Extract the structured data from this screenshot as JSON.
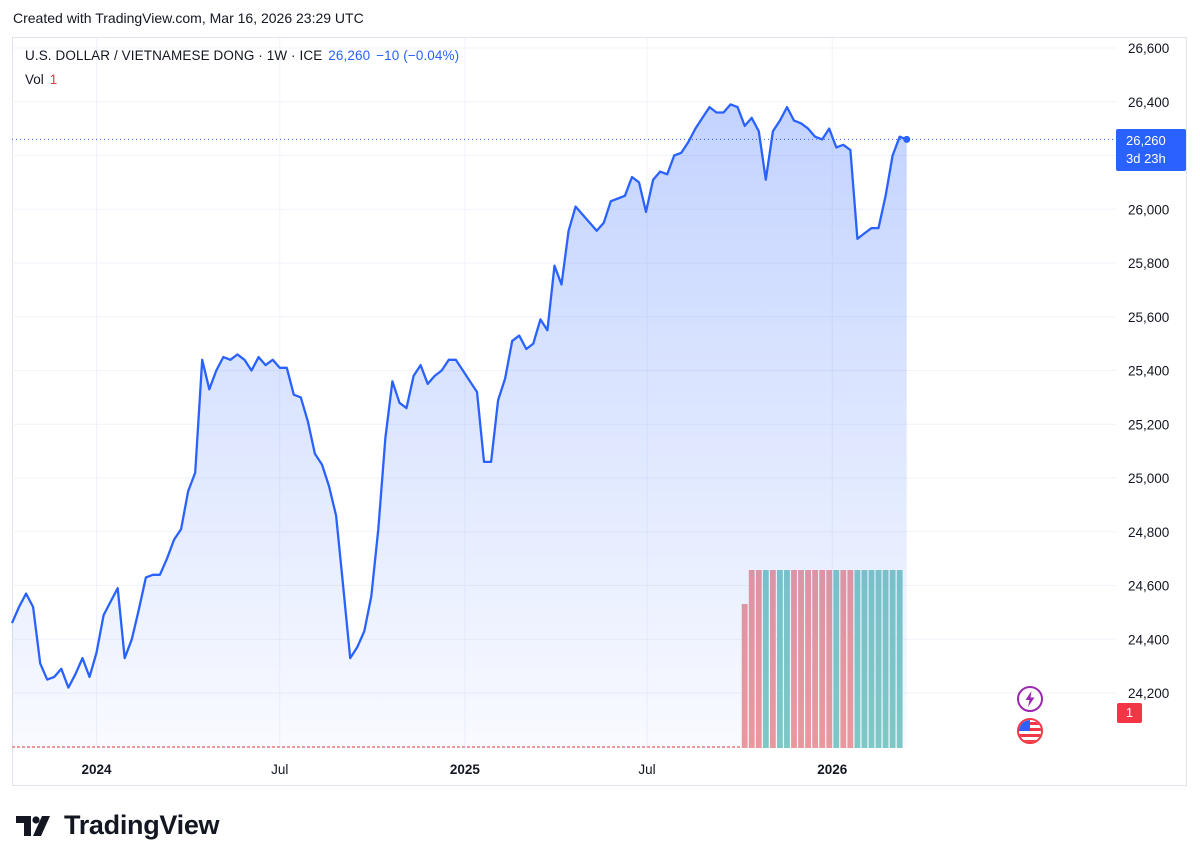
{
  "header_note": "Created with TradingView.com, Mar 16, 2026 23:29 UTC",
  "legend": {
    "symbol": "U.S. DOLLAR / VIETNAMESE DONG · 1W · ICE",
    "price": "26,260",
    "change": "−10 (−0.04%)",
    "vol_label": "Vol",
    "vol_value": "1"
  },
  "price_tag": {
    "price": "26,260",
    "countdown": "3d 23h"
  },
  "vol_tag": "1",
  "branding": "TradingView",
  "colors": {
    "line": "#2962ff",
    "up_volume": "#80cbc4",
    "down_volume": "#ef9a9a",
    "axis_text": "#131722"
  },
  "chart_data": {
    "type": "area",
    "title": "U.S. DOLLAR / VIETNAMESE DONG",
    "xlabel": "",
    "ylabel": "",
    "ylim": [
      23900,
      26700
    ],
    "y_ticks": [
      24200,
      24400,
      24600,
      24800,
      25000,
      25200,
      25400,
      25600,
      25800,
      26000,
      26200,
      26400,
      26600
    ],
    "y_tick_labels": [
      "24,200",
      "24,400",
      "24,600",
      "24,800",
      "25,000",
      "25,200",
      "25,400",
      "25,600",
      "25,800",
      "26,000",
      "26,200",
      "26,400",
      "26,600"
    ],
    "x_ticks": [
      {
        "date": "2024-01-01",
        "label": "2024",
        "bold": true
      },
      {
        "date": "2024-07-01",
        "label": "Jul",
        "bold": false
      },
      {
        "date": "2025-01-01",
        "label": "2025",
        "bold": true
      },
      {
        "date": "2025-07-01",
        "label": "Jul",
        "bold": false
      },
      {
        "date": "2026-01-01",
        "label": "2026",
        "bold": true
      }
    ],
    "grid": true,
    "last_price": 26260,
    "series": [
      {
        "name": "USD/VND",
        "points": [
          [
            "2023-10-09",
            24460
          ],
          [
            "2023-10-16",
            24520
          ],
          [
            "2023-10-23",
            24570
          ],
          [
            "2023-10-30",
            24520
          ],
          [
            "2023-11-06",
            24310
          ],
          [
            "2023-11-13",
            24250
          ],
          [
            "2023-11-20",
            24260
          ],
          [
            "2023-11-27",
            24290
          ],
          [
            "2023-12-04",
            24220
          ],
          [
            "2023-12-11",
            24270
          ],
          [
            "2023-12-18",
            24330
          ],
          [
            "2023-12-25",
            24260
          ],
          [
            "2024-01-01",
            24350
          ],
          [
            "2024-01-08",
            24490
          ],
          [
            "2024-01-15",
            24540
          ],
          [
            "2024-01-22",
            24590
          ],
          [
            "2024-01-29",
            24330
          ],
          [
            "2024-02-05",
            24400
          ],
          [
            "2024-02-12",
            24510
          ],
          [
            "2024-02-19",
            24630
          ],
          [
            "2024-02-26",
            24640
          ],
          [
            "2024-03-04",
            24640
          ],
          [
            "2024-03-11",
            24700
          ],
          [
            "2024-03-18",
            24770
          ],
          [
            "2024-03-25",
            24810
          ],
          [
            "2024-04-01",
            24950
          ],
          [
            "2024-04-08",
            25020
          ],
          [
            "2024-04-15",
            25440
          ],
          [
            "2024-04-22",
            25330
          ],
          [
            "2024-04-29",
            25400
          ],
          [
            "2024-05-06",
            25450
          ],
          [
            "2024-05-13",
            25440
          ],
          [
            "2024-05-20",
            25460
          ],
          [
            "2024-05-27",
            25440
          ],
          [
            "2024-06-03",
            25400
          ],
          [
            "2024-06-10",
            25450
          ],
          [
            "2024-06-17",
            25420
          ],
          [
            "2024-06-24",
            25440
          ],
          [
            "2024-07-01",
            25410
          ],
          [
            "2024-07-08",
            25410
          ],
          [
            "2024-07-15",
            25310
          ],
          [
            "2024-07-22",
            25300
          ],
          [
            "2024-07-29",
            25210
          ],
          [
            "2024-08-05",
            25090
          ],
          [
            "2024-08-12",
            25050
          ],
          [
            "2024-08-19",
            24970
          ],
          [
            "2024-08-26",
            24860
          ],
          [
            "2024-09-02",
            24600
          ],
          [
            "2024-09-09",
            24330
          ],
          [
            "2024-09-16",
            24370
          ],
          [
            "2024-09-23",
            24430
          ],
          [
            "2024-09-30",
            24560
          ],
          [
            "2024-10-07",
            24810
          ],
          [
            "2024-10-14",
            25150
          ],
          [
            "2024-10-21",
            25360
          ],
          [
            "2024-10-28",
            25280
          ],
          [
            "2024-11-04",
            25260
          ],
          [
            "2024-11-11",
            25380
          ],
          [
            "2024-11-18",
            25420
          ],
          [
            "2024-11-25",
            25350
          ],
          [
            "2024-12-02",
            25380
          ],
          [
            "2024-12-09",
            25400
          ],
          [
            "2024-12-16",
            25440
          ],
          [
            "2024-12-23",
            25440
          ],
          [
            "2024-12-30",
            25400
          ],
          [
            "2025-01-06",
            25360
          ],
          [
            "2025-01-13",
            25320
          ],
          [
            "2025-01-20",
            25060
          ],
          [
            "2025-01-27",
            25060
          ],
          [
            "2025-02-03",
            25290
          ],
          [
            "2025-02-10",
            25370
          ],
          [
            "2025-02-17",
            25510
          ],
          [
            "2025-02-24",
            25530
          ],
          [
            "2025-03-03",
            25480
          ],
          [
            "2025-03-10",
            25500
          ],
          [
            "2025-03-17",
            25590
          ],
          [
            "2025-03-24",
            25550
          ],
          [
            "2025-03-31",
            25790
          ],
          [
            "2025-04-07",
            25720
          ],
          [
            "2025-04-14",
            25920
          ],
          [
            "2025-04-21",
            26010
          ],
          [
            "2025-04-28",
            25980
          ],
          [
            "2025-05-05",
            25950
          ],
          [
            "2025-05-12",
            25920
          ],
          [
            "2025-05-19",
            25950
          ],
          [
            "2025-05-26",
            26030
          ],
          [
            "2025-06-02",
            26040
          ],
          [
            "2025-06-09",
            26050
          ],
          [
            "2025-06-16",
            26120
          ],
          [
            "2025-06-23",
            26100
          ],
          [
            "2025-06-30",
            25990
          ],
          [
            "2025-07-07",
            26110
          ],
          [
            "2025-07-14",
            26140
          ],
          [
            "2025-07-21",
            26130
          ],
          [
            "2025-07-28",
            26200
          ],
          [
            "2025-08-04",
            26210
          ],
          [
            "2025-08-11",
            26250
          ],
          [
            "2025-08-18",
            26300
          ],
          [
            "2025-08-25",
            26340
          ],
          [
            "2025-09-01",
            26380
          ],
          [
            "2025-09-08",
            26360
          ],
          [
            "2025-09-15",
            26360
          ],
          [
            "2025-09-22",
            26390
          ],
          [
            "2025-09-29",
            26380
          ],
          [
            "2025-10-06",
            26310
          ],
          [
            "2025-10-13",
            26340
          ],
          [
            "2025-10-20",
            26290
          ],
          [
            "2025-10-27",
            26110
          ],
          [
            "2025-11-03",
            26290
          ],
          [
            "2025-11-10",
            26330
          ],
          [
            "2025-11-17",
            26380
          ],
          [
            "2025-11-24",
            26330
          ],
          [
            "2025-12-01",
            26320
          ],
          [
            "2025-12-08",
            26300
          ],
          [
            "2025-12-15",
            26270
          ],
          [
            "2025-12-22",
            26260
          ],
          [
            "2025-12-29",
            26300
          ],
          [
            "2026-01-05",
            26230
          ],
          [
            "2026-01-12",
            26240
          ],
          [
            "2026-01-19",
            26220
          ],
          [
            "2026-01-26",
            25890
          ],
          [
            "2026-02-02",
            25910
          ],
          [
            "2026-02-09",
            25930
          ],
          [
            "2026-02-16",
            25930
          ],
          [
            "2026-02-23",
            26050
          ],
          [
            "2026-03-02",
            26200
          ],
          [
            "2026-03-09",
            26270
          ],
          [
            "2026-03-16",
            26260
          ]
        ]
      },
      {
        "name": "Vol",
        "start_date": "2025-10-06",
        "values": [
          1,
          1,
          1,
          1,
          1,
          1,
          1,
          1,
          1,
          1,
          1,
          1,
          1,
          1,
          1,
          1,
          1,
          1,
          1,
          1,
          1,
          1,
          1
        ],
        "directions": [
          "down",
          "down",
          "down",
          "up",
          "down",
          "up",
          "up",
          "down",
          "down",
          "down",
          "down",
          "down",
          "down",
          "up",
          "down",
          "down",
          "up",
          "up",
          "up",
          "up",
          "up",
          "up",
          "up"
        ]
      }
    ]
  }
}
